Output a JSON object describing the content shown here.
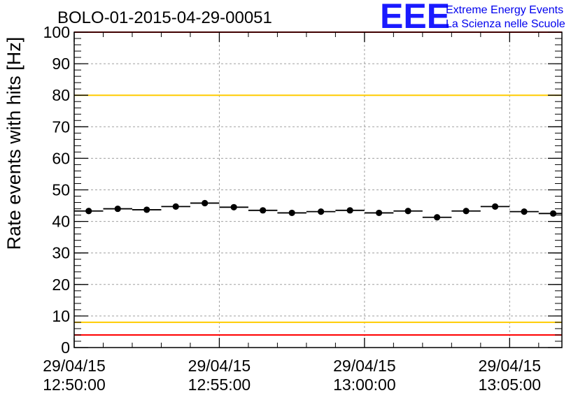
{
  "chart_data": {
    "type": "scatter",
    "title": "BOLO-01-2015-04-29-00051",
    "ylabel": "Rate events with hits [Hz]",
    "xlabel": "",
    "ylim": [
      0,
      100
    ],
    "yticks": [
      "0",
      "10",
      "20",
      "30",
      "40",
      "50",
      "60",
      "70",
      "80",
      "90",
      "100"
    ],
    "xlim_minutes": [
      0,
      16.8
    ],
    "xticks": [
      {
        "minute": 0,
        "date": "29/04/15",
        "time": "12:50:00"
      },
      {
        "minute": 5,
        "date": "29/04/15",
        "time": "12:55:00"
      },
      {
        "minute": 10,
        "date": "29/04/15",
        "time": "13:00:00"
      },
      {
        "minute": 15,
        "date": "29/04/15",
        "time": "13:05:00"
      }
    ],
    "bin_width_minutes": 1,
    "points": [
      {
        "x": 0.5,
        "y": 43.3
      },
      {
        "x": 1.5,
        "y": 44.0
      },
      {
        "x": 2.5,
        "y": 43.7
      },
      {
        "x": 3.5,
        "y": 44.7
      },
      {
        "x": 4.5,
        "y": 45.8
      },
      {
        "x": 5.5,
        "y": 44.5
      },
      {
        "x": 6.5,
        "y": 43.5
      },
      {
        "x": 7.5,
        "y": 42.7
      },
      {
        "x": 8.5,
        "y": 43.1
      },
      {
        "x": 9.5,
        "y": 43.5
      },
      {
        "x": 10.5,
        "y": 42.7
      },
      {
        "x": 11.5,
        "y": 43.3
      },
      {
        "x": 12.5,
        "y": 41.3
      },
      {
        "x": 13.5,
        "y": 43.3
      },
      {
        "x": 14.5,
        "y": 44.7
      },
      {
        "x": 15.5,
        "y": 43.1
      },
      {
        "x": 16.5,
        "y": 42.5
      }
    ],
    "reference_lines": [
      {
        "y": 100,
        "color": "#ff0000"
      },
      {
        "y": 80,
        "color": "#ffcc00"
      },
      {
        "y": 8,
        "color": "#ffcc00"
      },
      {
        "y": 4,
        "color": "#ff0000"
      }
    ],
    "grid": true,
    "colors": {
      "points": "#000000",
      "grid": "#a0a0a0",
      "logo": "#0000ee"
    }
  },
  "logo": {
    "mark": "EEE",
    "line1": "Extreme Energy Events",
    "line2": "La Scienza nelle Scuole"
  }
}
